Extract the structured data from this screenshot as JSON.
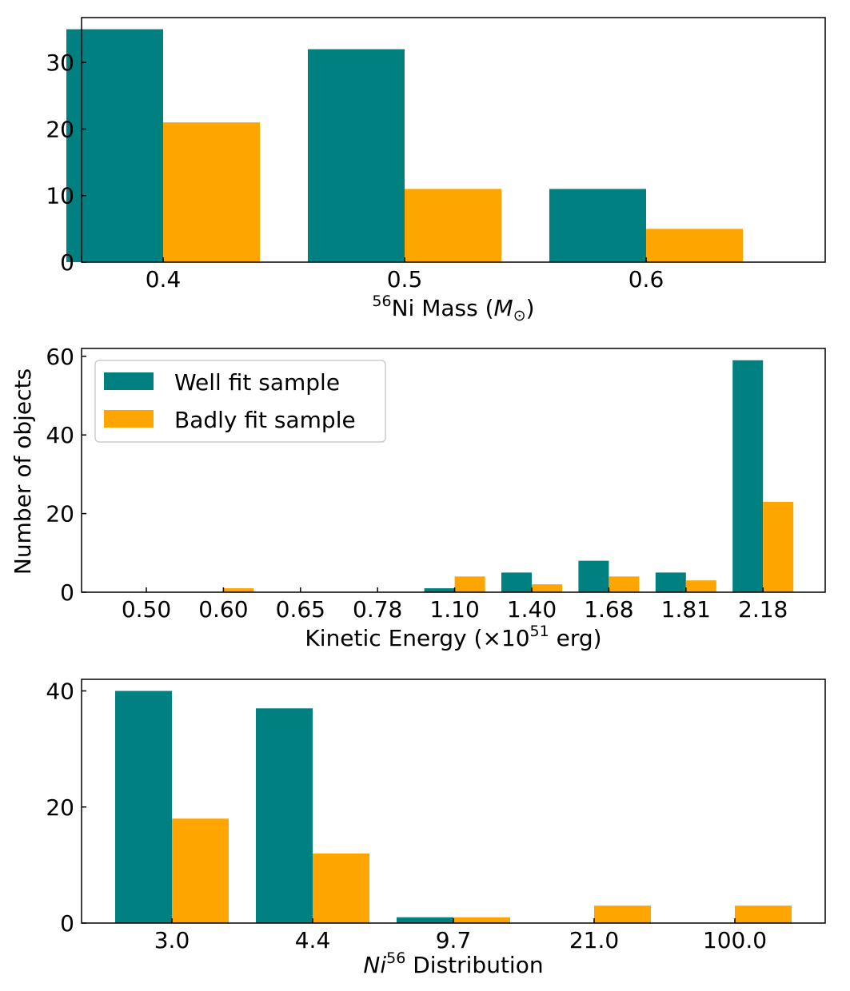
{
  "shared_ylabel": "Number of objects",
  "legend": [
    "Well fit sample",
    "Badly fit sample"
  ],
  "colors": {
    "well": "#008080",
    "badly": "#FFA500"
  },
  "chart_data": [
    {
      "type": "bar",
      "categories": [
        "0.4",
        "0.5",
        "0.6"
      ],
      "series": [
        {
          "name": "Well fit sample",
          "values": [
            35,
            32,
            11
          ]
        },
        {
          "name": "Badly fit sample",
          "values": [
            21,
            11,
            5
          ]
        }
      ],
      "xlabel": {
        "sup": "56",
        "main": "Ni Mass (",
        "ital": "M",
        "sub": "⊙",
        "close": ")"
      },
      "ylim": [
        0,
        36.75
      ],
      "yticks": [
        0,
        10,
        20,
        30
      ],
      "legend_position": "none"
    },
    {
      "type": "bar",
      "categories": [
        "0.50",
        "0.60",
        "0.65",
        "0.78",
        "1.10",
        "1.40",
        "1.68",
        "1.81",
        "2.18"
      ],
      "series": [
        {
          "name": "Well fit sample",
          "values": [
            0,
            0,
            0,
            0,
            1,
            5,
            8,
            5,
            59
          ]
        },
        {
          "name": "Badly fit sample",
          "values": [
            0,
            1,
            0,
            0,
            4,
            2,
            4,
            3,
            23
          ]
        }
      ],
      "xlabel": {
        "main": "Kinetic Energy (×10",
        "sup": "51",
        "close": " erg)"
      },
      "ylim": [
        0,
        62
      ],
      "yticks": [
        0,
        20,
        40,
        60
      ],
      "legend_position": "upper-left"
    },
    {
      "type": "bar",
      "categories": [
        "3.0",
        "4.4",
        "9.7",
        "21.0",
        "100.0"
      ],
      "series": [
        {
          "name": "Well fit sample",
          "values": [
            40,
            37,
            1,
            0,
            0
          ]
        },
        {
          "name": "Badly fit sample",
          "values": [
            18,
            12,
            1,
            3,
            3
          ]
        }
      ],
      "xlabel": {
        "ital": "Ni",
        "sup": "56",
        "main": " Distribution"
      },
      "ylim": [
        0,
        42
      ],
      "yticks": [
        0,
        20,
        40
      ],
      "legend_position": "none"
    }
  ]
}
